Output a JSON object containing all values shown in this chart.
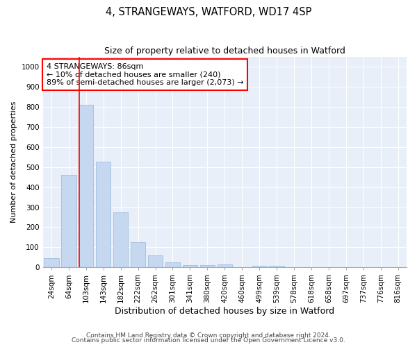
{
  "title": "4, STRANGEWAYS, WATFORD, WD17 4SP",
  "subtitle": "Size of property relative to detached houses in Watford",
  "xlabel": "Distribution of detached houses by size in Watford",
  "ylabel": "Number of detached properties",
  "categories": [
    "24sqm",
    "64sqm",
    "103sqm",
    "143sqm",
    "182sqm",
    "222sqm",
    "262sqm",
    "301sqm",
    "341sqm",
    "380sqm",
    "420sqm",
    "460sqm",
    "499sqm",
    "539sqm",
    "578sqm",
    "618sqm",
    "658sqm",
    "697sqm",
    "737sqm",
    "776sqm",
    "816sqm"
  ],
  "values": [
    45,
    460,
    810,
    525,
    275,
    125,
    60,
    25,
    12,
    12,
    15,
    0,
    8,
    8,
    0,
    0,
    0,
    0,
    0,
    0,
    0
  ],
  "bar_color": "#c5d8f0",
  "bar_edge_color": "#a0bedd",
  "vline_x_index": 1.62,
  "vline_color": "red",
  "annotation_text": "4 STRANGEWAYS: 86sqm\n← 10% of detached houses are smaller (240)\n89% of semi-detached houses are larger (2,073) →",
  "annotation_box_color": "white",
  "annotation_box_edgecolor": "red",
  "ylim": [
    0,
    1050
  ],
  "yticks": [
    0,
    100,
    200,
    300,
    400,
    500,
    600,
    700,
    800,
    900,
    1000
  ],
  "footer_line1": "Contains HM Land Registry data © Crown copyright and database right 2024.",
  "footer_line2": "Contains public sector information licensed under the Open Government Licence v3.0.",
  "bg_color": "#e8eff8",
  "title_fontsize": 10.5,
  "subtitle_fontsize": 9,
  "ylabel_fontsize": 8,
  "xlabel_fontsize": 9,
  "tick_fontsize": 7.5,
  "annotation_fontsize": 8,
  "footer_fontsize": 6.5
}
